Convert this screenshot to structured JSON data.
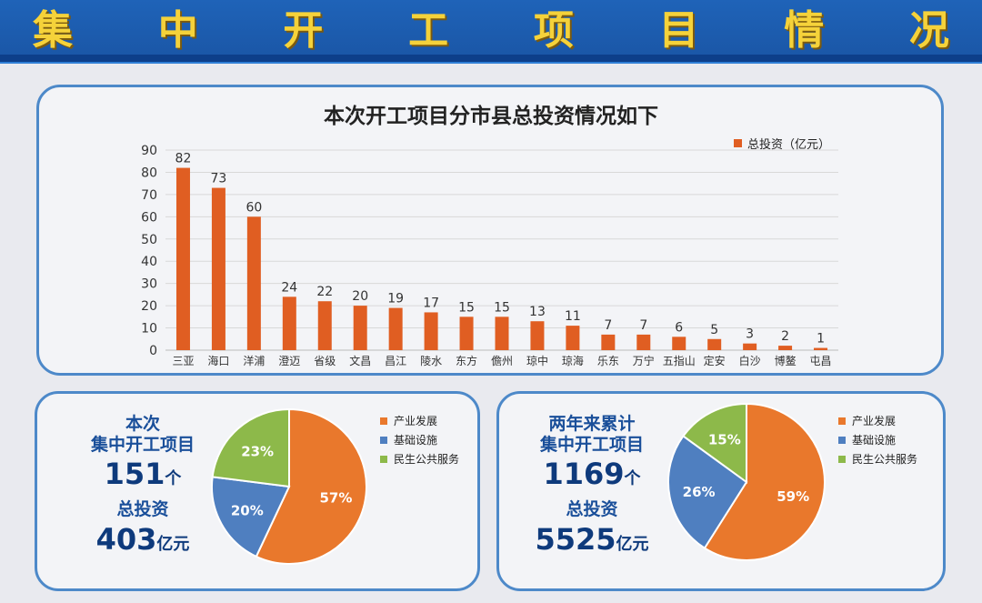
{
  "banner": {
    "title_chars": [
      "集",
      "中",
      "开",
      "工",
      "项",
      "目",
      "情",
      "况"
    ]
  },
  "chart_data": [
    {
      "type": "bar",
      "title": "本次开工项目分市县总投资情况如下",
      "categories": [
        "三亚",
        "海口",
        "洋浦",
        "澄迈",
        "省级",
        "文昌",
        "昌江",
        "陵水",
        "东方",
        "儋州",
        "琼中",
        "琼海",
        "乐东",
        "万宁",
        "五指山",
        "定安",
        "白沙",
        "博鳌",
        "屯昌"
      ],
      "series": [
        {
          "name": "总投资（亿元）",
          "values": [
            82,
            73,
            60,
            24,
            22,
            20,
            19,
            17,
            15,
            15,
            13,
            11,
            7,
            7,
            6,
            5,
            3,
            2,
            1
          ]
        }
      ],
      "ylim": [
        0,
        90
      ],
      "yticks": [
        0,
        10,
        20,
        30,
        40,
        50,
        60,
        70,
        80,
        90
      ],
      "grid": true,
      "legend": "top-right",
      "colors": {
        "bar": "#e05e22"
      }
    },
    {
      "type": "pie",
      "labels": [
        "产业发展",
        "基础设施",
        "民生公共服务"
      ],
      "values": [
        57,
        20,
        23
      ],
      "value_labels": [
        "57%",
        "20%",
        "23%"
      ],
      "colors": [
        "#e9782c",
        "#4f7fc0",
        "#8db94a"
      ],
      "legend": "right"
    },
    {
      "type": "pie",
      "labels": [
        "产业发展",
        "基础设施",
        "民生公共服务"
      ],
      "values": [
        59,
        26,
        15
      ],
      "value_labels": [
        "59%",
        "26%",
        "15%"
      ],
      "colors": [
        "#e9782c",
        "#4f7fc0",
        "#8db94a"
      ],
      "legend": "right"
    }
  ],
  "left_stats": {
    "line1": "本次",
    "line2": "集中开工项目",
    "count": "151",
    "count_unit": "个",
    "inv_label": "总投资",
    "inv_value": "403",
    "inv_unit": "亿元"
  },
  "right_stats": {
    "line1": "两年来累计",
    "line2": "集中开工项目",
    "count": "1169",
    "count_unit": "个",
    "inv_label": "总投资",
    "inv_value": "5525",
    "inv_unit": "亿元"
  }
}
